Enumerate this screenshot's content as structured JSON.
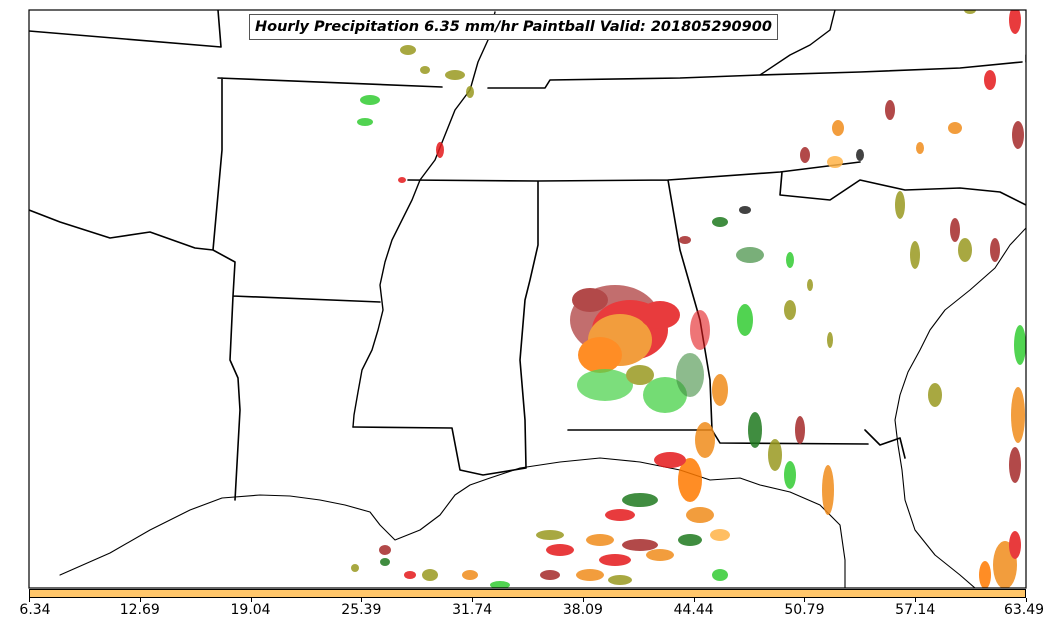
{
  "title": "Hourly Precipitation 6.35 mm/hr Paintball Valid: 201805290900",
  "colors": {
    "red": "#e41a1c",
    "dark_red": "#a52a2a",
    "orange": "#f08c1c",
    "light_orange": "#ffb347",
    "green": "#33cc33",
    "dark_green": "#1f7a1f",
    "olive": "#9a9a20",
    "colorbar_fill": "#ffc66a"
  },
  "colorbar": {
    "ticks": [
      "6.34",
      "12.69",
      "19.04",
      "25.39",
      "31.74",
      "38.09",
      "44.44",
      "50.79",
      "57.14",
      "63.49"
    ]
  }
}
